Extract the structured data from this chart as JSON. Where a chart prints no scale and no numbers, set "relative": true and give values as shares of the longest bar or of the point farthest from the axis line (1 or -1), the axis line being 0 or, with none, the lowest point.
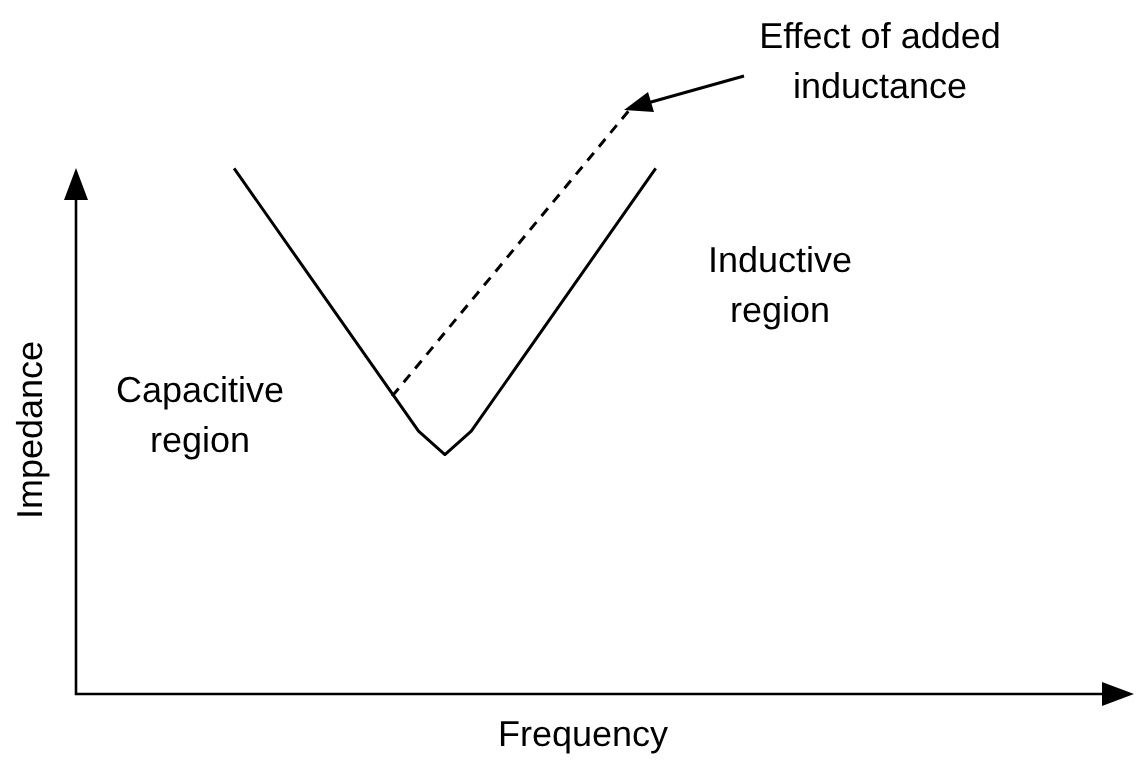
{
  "chart_data": {
    "type": "line",
    "relative": true,
    "xlabel": "Frequency",
    "ylabel": "Impedance",
    "categories": [
      null,
      null,
      null,
      null,
      null,
      null,
      null,
      null,
      null,
      null,
      null,
      null,
      null,
      null,
      null,
      null,
      null,
      null,
      null,
      null,
      null,
      null,
      null,
      null,
      null,
      null,
      null,
      null,
      null,
      null,
      null,
      null,
      null,
      null,
      null,
      null,
      null,
      null,
      null,
      null,
      null
    ],
    "series": [
      {
        "color": "#000000",
        "line_style": "solid",
        "values": [
          null,
          null,
          null,
          null,
          null,
          null,
          0.9,
          null,
          null,
          null,
          null,
          null,
          null,
          0.45,
          0.41,
          0.45,
          null,
          null,
          null,
          null,
          null,
          null,
          0.9,
          null,
          null,
          null,
          null,
          null,
          null,
          null,
          null,
          null,
          null,
          null,
          null,
          null,
          null,
          null,
          null,
          null,
          null
        ]
      },
      {
        "color": "#000000",
        "line_style": "dashed",
        "values": [
          null,
          null,
          null,
          null,
          null,
          null,
          null,
          null,
          null,
          null,
          null,
          null,
          0.51,
          null,
          null,
          null,
          null,
          null,
          null,
          null,
          null,
          1.0,
          null,
          null,
          null,
          null,
          null,
          null,
          null,
          null,
          null,
          null,
          null,
          null,
          null,
          null,
          null,
          null,
          null,
          null,
          null
        ]
      }
    ],
    "annotations": [
      "Effect of added inductance",
      "Inductive region",
      "Capacitive region"
    ]
  }
}
